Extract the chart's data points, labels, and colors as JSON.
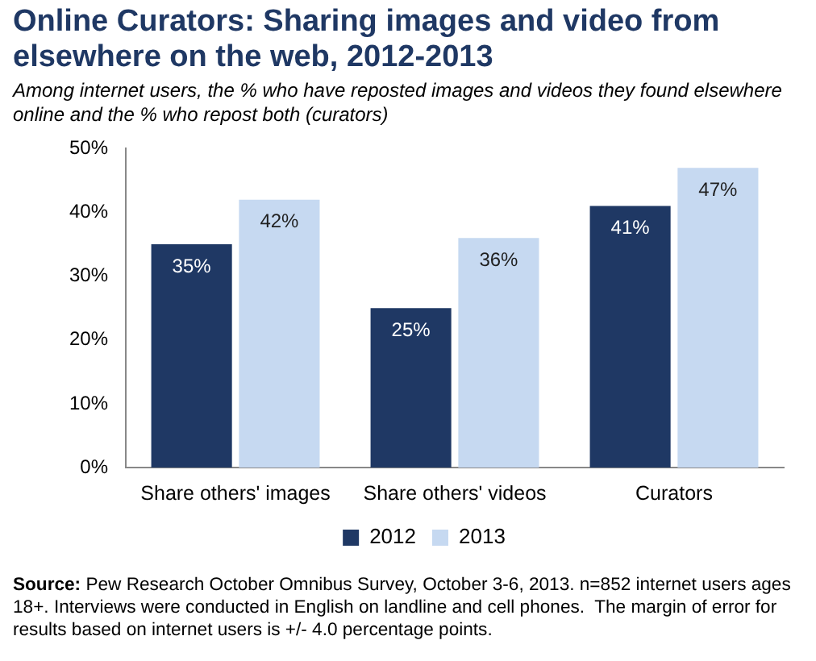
{
  "chart_data": {
    "type": "bar",
    "title": "Online Curators: Sharing images and video from elsewhere on the web, 2012-2013",
    "subtitle": "Among internet users, the % who have reposted images and videos they found elsewhere online and the % who repost both (curators)",
    "categories": [
      "Share others' images",
      "Share others' videos",
      "Curators"
    ],
    "series": [
      {
        "name": "2012",
        "color": "#1f3864",
        "values": [
          35,
          25,
          41
        ],
        "value_labels": [
          "35%",
          "25%",
          "41%"
        ]
      },
      {
        "name": "2013",
        "color": "#c6d9f1",
        "values": [
          42,
          36,
          47
        ],
        "value_labels": [
          "42%",
          "36%",
          "47%"
        ]
      }
    ],
    "ylim": [
      0,
      50
    ],
    "yticks": [
      {
        "value": 0,
        "label": "0%"
      },
      {
        "value": 10,
        "label": "10%"
      },
      {
        "value": 20,
        "label": "20%"
      },
      {
        "value": 30,
        "label": "30%"
      },
      {
        "value": 40,
        "label": "40%"
      },
      {
        "value": 50,
        "label": "50%"
      }
    ],
    "grid": false,
    "legend": "bottom",
    "annotations": [
      "Source: Pew Research October Omnibus Survey, October 3-6, 2013. n=852 internet users ages 18+. Interviews were conducted in English on landline and cell phones.  The margin of error for results based on internet users is +/- 4.0 percentage points."
    ]
  }
}
